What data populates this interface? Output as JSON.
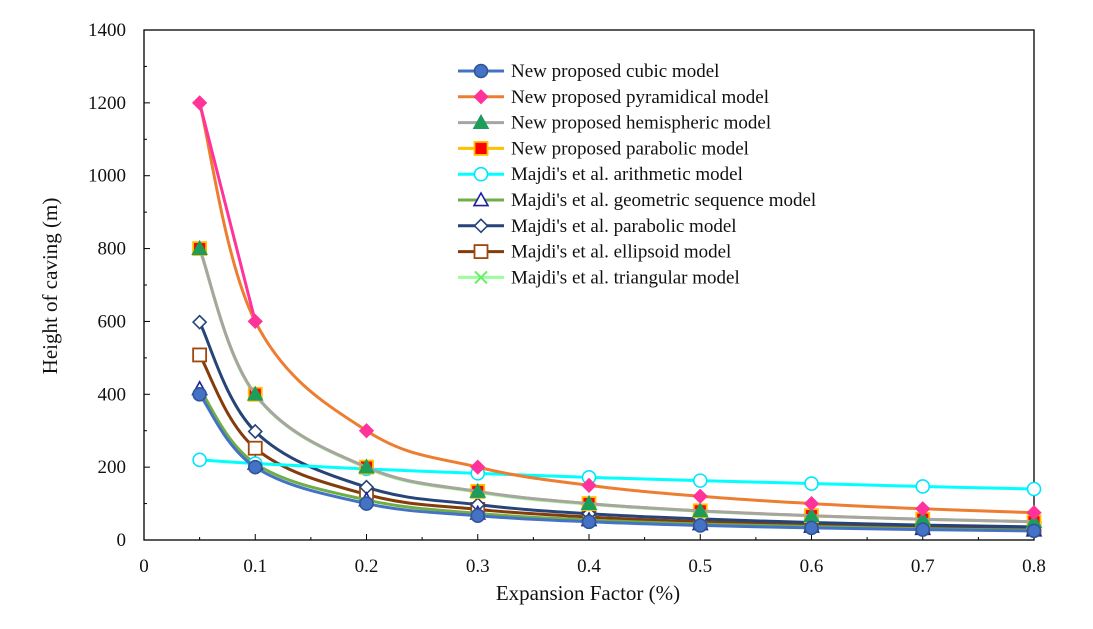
{
  "chart_data": {
    "type": "line",
    "xlabel": "Expansion Factor (%)",
    "ylabel": "Height of caving (m)",
    "xlim": [
      0,
      0.8
    ],
    "ylim": [
      0,
      1400
    ],
    "xticks": [
      0,
      0.1,
      0.2,
      0.3,
      0.4,
      0.5,
      0.6,
      0.7,
      0.8
    ],
    "xtick_labels": [
      "0",
      "0.1",
      "0.2",
      "0.3",
      "0.4",
      "0.5",
      "0.6",
      "0.7",
      "0.8"
    ],
    "yticks": [
      0,
      200,
      400,
      600,
      800,
      1000,
      1200,
      1400
    ],
    "ytick_labels": [
      "0",
      "200",
      "400",
      "600",
      "800",
      "1000",
      "1200",
      "1400"
    ],
    "grid": false,
    "legend_position": "top-right",
    "x": [
      0.05,
      0.1,
      0.2,
      0.3,
      0.4,
      0.5,
      0.6,
      0.7,
      0.8
    ],
    "series": [
      {
        "name": "New proposed cubic model",
        "line_color": "#4472c4",
        "marker": "circle-filled",
        "marker_fill": "#4472c4",
        "marker_stroke": "#2f5597",
        "values": [
          400,
          200,
          100,
          66.7,
          50,
          40,
          33.3,
          28.6,
          25
        ]
      },
      {
        "name": "New proposed pyramidical model",
        "line_color": "#ed7d31",
        "marker": "diamond-filled",
        "marker_fill": "#ff3399",
        "marker_stroke": "#ff3399",
        "values": [
          1200,
          600,
          300,
          200,
          150,
          120,
          100,
          85.7,
          75
        ]
      },
      {
        "name": "New proposed hemispheric model",
        "line_color": "#a5a5a5",
        "marker": "triangle-filled",
        "marker_fill": "#1e9c5a",
        "marker_stroke": "#1e9c5a",
        "values": [
          800,
          400,
          200,
          133.3,
          100,
          80,
          66.7,
          57.1,
          50
        ]
      },
      {
        "name": "New proposed parabolic model",
        "line_color": "#ffc000",
        "marker": "square-filled",
        "marker_fill": "#ff0000",
        "marker_stroke": "#ffc000",
        "values": [
          800,
          400,
          200,
          133.3,
          100,
          80,
          66.7,
          57.1,
          50
        ]
      },
      {
        "name": "Majdi's et al. arithmetic model",
        "line_color": "#00ffff",
        "marker": "circle-open",
        "marker_fill": "#ffffff",
        "marker_stroke": "#00e5ff",
        "values": [
          220,
          210,
          195,
          183,
          172,
          163,
          155,
          147,
          140
        ]
      },
      {
        "name": "Majdi's et al. geometric sequence model",
        "line_color": "#70ad47",
        "marker": "triangle-open",
        "marker_fill": "#ffffff",
        "marker_stroke": "#1f1f9f",
        "values": [
          415,
          210,
          110,
          73,
          55,
          44,
          37,
          31,
          27
        ]
      },
      {
        "name": "Majdi's et al. parabolic model",
        "line_color": "#264478",
        "marker": "diamond-open",
        "marker_fill": "#ffffff",
        "marker_stroke": "#264478",
        "values": [
          598,
          298,
          145,
          97,
          72,
          58,
          48,
          41,
          36
        ]
      },
      {
        "name": "Majdi's et al. ellipsoid model",
        "line_color": "#843c0c",
        "marker": "square-open",
        "marker_fill": "#ffffff",
        "marker_stroke": "#9e480e",
        "values": [
          508,
          252,
          125,
          84,
          63,
          50,
          42,
          36,
          31
        ]
      },
      {
        "name": "Majdi's et al. triangular model",
        "line_color": "#99ff99",
        "marker": "x",
        "marker_fill": "none",
        "marker_stroke": "#66ee66",
        "values": [
          798,
          398,
          198,
          131,
          98,
          79,
          66,
          57,
          50
        ]
      }
    ]
  }
}
